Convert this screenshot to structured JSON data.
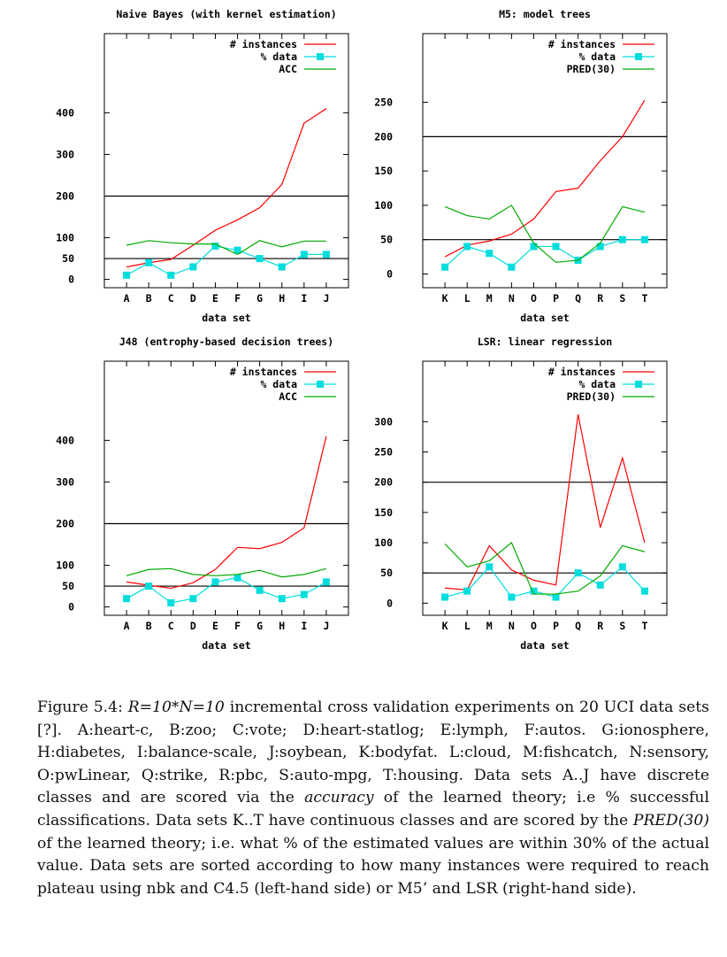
{
  "chart_data": [
    {
      "type": "line",
      "title": "Naive Bayes (with kernel estimation)",
      "xlabel": "data set",
      "categories": [
        "A",
        "B",
        "C",
        "D",
        "E",
        "F",
        "G",
        "H",
        "I",
        "J"
      ],
      "yticks": [
        0,
        50,
        100,
        200,
        300,
        400
      ],
      "ylim": [
        -20,
        590
      ],
      "reference_lines": [
        50,
        200
      ],
      "legend_position": "top-right",
      "series": [
        {
          "name": "# instances",
          "color": "#ff0000",
          "marker": false,
          "values": [
            30,
            40,
            48,
            82,
            118,
            143,
            172,
            228,
            375,
            410
          ]
        },
        {
          "name": "% data",
          "color": "#00dddd",
          "marker": true,
          "values": [
            10,
            40,
            10,
            30,
            80,
            70,
            50,
            30,
            60,
            60
          ]
        },
        {
          "name": "ACC",
          "color": "#00aa00",
          "marker": false,
          "values": [
            82,
            93,
            88,
            85,
            85,
            60,
            93,
            78,
            92,
            92
          ]
        }
      ]
    },
    {
      "type": "line",
      "title": "M5: model trees",
      "xlabel": "data set",
      "categories": [
        "K",
        "L",
        "M",
        "N",
        "O",
        "P",
        "Q",
        "R",
        "S",
        "T"
      ],
      "yticks": [
        0,
        50,
        100,
        150,
        200,
        250
      ],
      "ylim": [
        -20,
        350
      ],
      "reference_lines": [
        50,
        200
      ],
      "legend_position": "top-right",
      "series": [
        {
          "name": "# instances",
          "color": "#ff0000",
          "marker": false,
          "values": [
            25,
            42,
            48,
            58,
            80,
            120,
            125,
            165,
            200,
            253
          ]
        },
        {
          "name": "% data",
          "color": "#00dddd",
          "marker": true,
          "values": [
            10,
            40,
            30,
            10,
            40,
            40,
            20,
            40,
            50,
            50
          ]
        },
        {
          "name": "PRED(30)",
          "color": "#00aa00",
          "marker": false,
          "values": [
            98,
            85,
            80,
            100,
            45,
            17,
            20,
            45,
            98,
            90
          ]
        }
      ]
    },
    {
      "type": "line",
      "title": "J48 (entrophy-based decision trees)",
      "xlabel": "data set",
      "categories": [
        "A",
        "B",
        "C",
        "D",
        "E",
        "F",
        "G",
        "H",
        "I",
        "J"
      ],
      "yticks": [
        0,
        50,
        100,
        200,
        300,
        400
      ],
      "ylim": [
        -20,
        590
      ],
      "reference_lines": [
        50,
        200
      ],
      "legend_position": "top-right",
      "series": [
        {
          "name": "# instances",
          "color": "#ff0000",
          "marker": false,
          "values": [
            60,
            52,
            45,
            58,
            90,
            143,
            140,
            155,
            190,
            410
          ]
        },
        {
          "name": "% data",
          "color": "#00dddd",
          "marker": true,
          "values": [
            20,
            50,
            10,
            20,
            60,
            70,
            40,
            20,
            30,
            60
          ]
        },
        {
          "name": "ACC",
          "color": "#00aa00",
          "marker": false,
          "values": [
            75,
            90,
            92,
            78,
            75,
            78,
            88,
            72,
            78,
            92
          ]
        }
      ]
    },
    {
      "type": "line",
      "title": "LSR: linear regression",
      "xlabel": "data set",
      "categories": [
        "K",
        "L",
        "M",
        "N",
        "O",
        "P",
        "Q",
        "R",
        "S",
        "T"
      ],
      "yticks": [
        0,
        50,
        100,
        150,
        200,
        250,
        300
      ],
      "ylim": [
        -20,
        400
      ],
      "reference_lines": [
        50,
        200
      ],
      "legend_position": "top-right",
      "series": [
        {
          "name": "# instances",
          "color": "#ff0000",
          "marker": false,
          "values": [
            25,
            22,
            95,
            55,
            38,
            30,
            312,
            125,
            240,
            100
          ]
        },
        {
          "name": "% data",
          "color": "#00dddd",
          "marker": true,
          "values": [
            10,
            20,
            60,
            10,
            20,
            10,
            50,
            30,
            60,
            20
          ]
        },
        {
          "name": "PRED(30)",
          "color": "#00aa00",
          "marker": false,
          "values": [
            98,
            60,
            70,
            100,
            15,
            15,
            20,
            45,
            95,
            85
          ]
        }
      ]
    }
  ],
  "caption": {
    "lead": "Figure 5.4: ",
    "math1": "R=10*N=10",
    "part1": " incremental cross validation experiments on 20 UCI data sets [?]. A:heart-c, B:zoo; C:vote; D:heart-statlog; E:lymph, F:autos. G:ionosphere, H:diabetes, I:balance-scale, J:soybean, K:bodyfat. L:cloud, M:fishcatch, N:sensory, O:pwLinear, Q:strike, R:pbc, S:auto-mpg, T:housing. Data sets A..J have discrete classes and are scored via the ",
    "accuracy": "accuracy",
    "part2": " of the learned theory; i.e % successful classifications. Data sets K..T have continuous classes and are scored by the ",
    "pred": "PRED(30)",
    "part3": " of the learned theory; i.e. what % of the estimated values are within 30% of the actual value. Data sets are sorted according to how many instances were required to reach plateau using nbk and C4.5 (left-hand side) or M5’ and LSR (right-hand side)."
  }
}
